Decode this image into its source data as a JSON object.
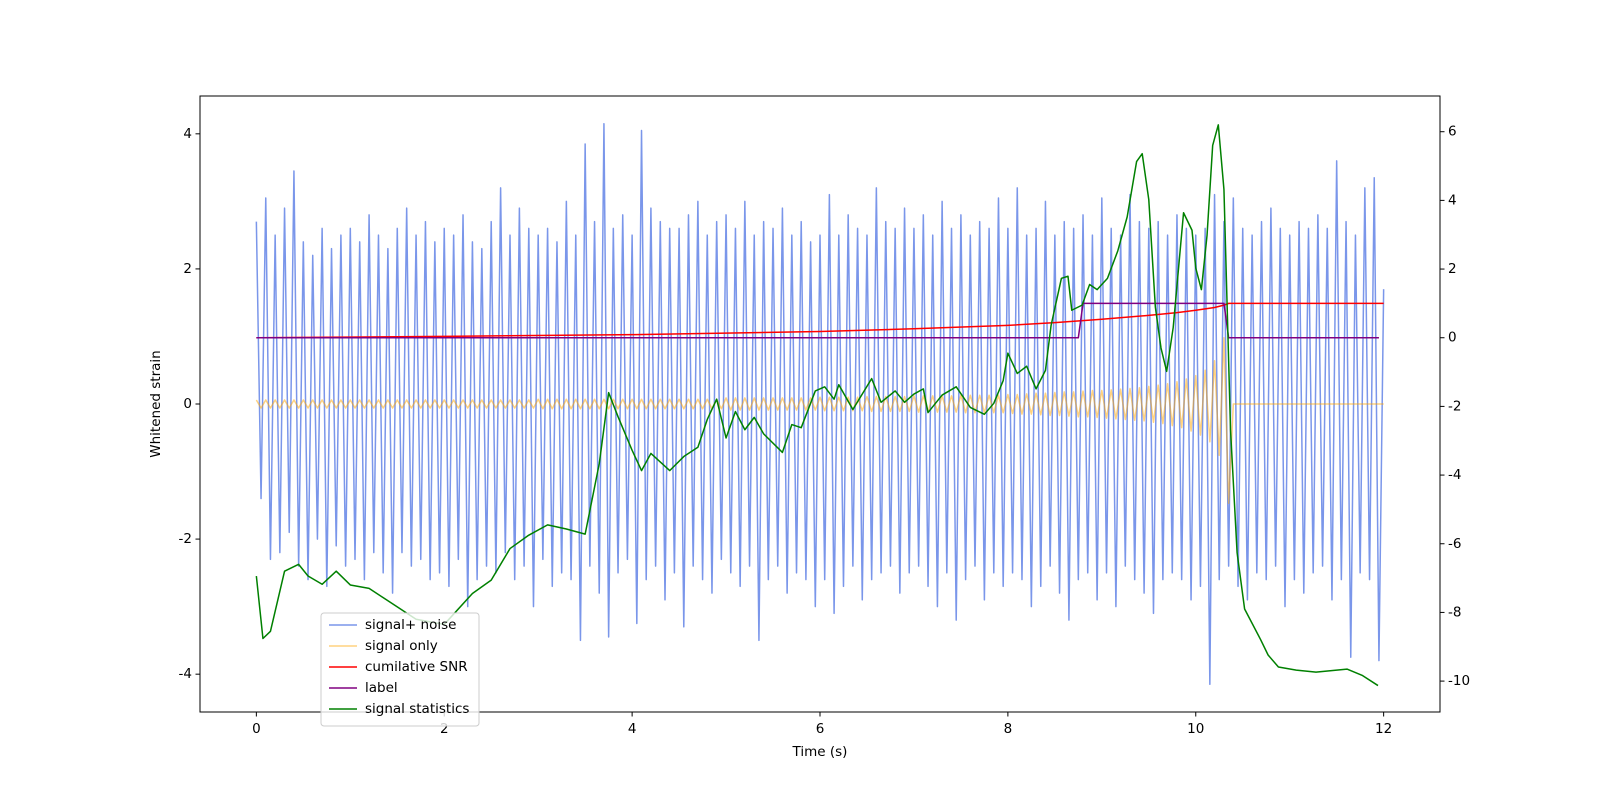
{
  "chart_data": {
    "type": "line",
    "xlabel": "Time (s)",
    "ylabel": "Whitened strain",
    "xlim": [
      -0.6,
      12.6
    ],
    "xticks": [
      0,
      2,
      4,
      6,
      8,
      10,
      12
    ],
    "ylim": [
      -4.56,
      4.56
    ],
    "yticks": [
      -4,
      -2,
      0,
      2,
      4
    ],
    "y2lim": [
      -10.9,
      7.04
    ],
    "y2ticks": [
      -10,
      -8,
      -6,
      -4,
      -2,
      0,
      2,
      4,
      6
    ],
    "legend": "lower left",
    "x": [
      0,
      0.05,
      0.1,
      0.15,
      0.2,
      0.25,
      0.3,
      0.35,
      0.4,
      0.45,
      0.5,
      0.55,
      0.6,
      0.65,
      0.7,
      0.75,
      0.8,
      0.85,
      0.9,
      0.95,
      1,
      1.05,
      1.1,
      1.15,
      1.2,
      1.25,
      1.3,
      1.35,
      1.4,
      1.45,
      1.5,
      1.55,
      1.6,
      1.65,
      1.7,
      1.75,
      1.8,
      1.85,
      1.9,
      1.95,
      2,
      2.05,
      2.1,
      2.15,
      2.2,
      2.25,
      2.3,
      2.35,
      2.4,
      2.45,
      2.5,
      2.55,
      2.6,
      2.65,
      2.7,
      2.75,
      2.8,
      2.85,
      2.9,
      2.95,
      3,
      3.05,
      3.1,
      3.15,
      3.2,
      3.25,
      3.3,
      3.35,
      3.4,
      3.45,
      3.5,
      3.55,
      3.6,
      3.65,
      3.7,
      3.75,
      3.8,
      3.85,
      3.9,
      3.95,
      4,
      4.05,
      4.1,
      4.15,
      4.2,
      4.25,
      4.3,
      4.35,
      4.4,
      4.45,
      4.5,
      4.55,
      4.6,
      4.65,
      4.7,
      4.75,
      4.8,
      4.85,
      4.9,
      4.95,
      5,
      5.05,
      5.1,
      5.15,
      5.2,
      5.25,
      5.3,
      5.35,
      5.4,
      5.45,
      5.5,
      5.55,
      5.6,
      5.65,
      5.7,
      5.75,
      5.8,
      5.85,
      5.9,
      5.95,
      6,
      6.05,
      6.1,
      6.15,
      6.2,
      6.25,
      6.3,
      6.35,
      6.4,
      6.45,
      6.5,
      6.55,
      6.6,
      6.65,
      6.7,
      6.75,
      6.8,
      6.85,
      6.9,
      6.95,
      7,
      7.05,
      7.1,
      7.15,
      7.2,
      7.25,
      7.3,
      7.35,
      7.4,
      7.45,
      7.5,
      7.55,
      7.6,
      7.65,
      7.7,
      7.75,
      7.8,
      7.85,
      7.9,
      7.95,
      8,
      8.05,
      8.1,
      8.15,
      8.2,
      8.25,
      8.3,
      8.35,
      8.4,
      8.45,
      8.5,
      8.55,
      8.6,
      8.65,
      8.7,
      8.75,
      8.8,
      8.85,
      8.9,
      8.95,
      9,
      9.05,
      9.1,
      9.15,
      9.2,
      9.25,
      9.3,
      9.35,
      9.4,
      9.45,
      9.5,
      9.55,
      9.6,
      9.65,
      9.7,
      9.75,
      9.8,
      9.85,
      9.9,
      9.95,
      10,
      10.05,
      10.1,
      10.15,
      10.2,
      10.25,
      10.3,
      10.35,
      10.4,
      10.45,
      10.5,
      10.55,
      10.6,
      10.65,
      10.7,
      10.75,
      10.8,
      10.85,
      10.9,
      10.95,
      11,
      11.05,
      11.1,
      11.15,
      11.2,
      11.25,
      11.3,
      11.35,
      11.4,
      11.45,
      11.5,
      11.55,
      11.6,
      11.65,
      11.7,
      11.75,
      11.8,
      11.85,
      11.9,
      11.95,
      12
    ],
    "series": [
      {
        "name": "signal+ noise",
        "color": "#4169e1",
        "alpha": 0.7,
        "values": [
          2.7,
          -1.4,
          3.05,
          -2.3,
          2.5,
          -2.2,
          2.9,
          -1.9,
          3.45,
          -2.4,
          2.4,
          -2.6,
          2.2,
          -2.0,
          2.6,
          -2.7,
          2.3,
          -2.1,
          2.5,
          -2.4,
          2.6,
          -2.3,
          2.4,
          -2.6,
          2.8,
          -2.2,
          2.5,
          -2.5,
          2.3,
          -2.8,
          2.6,
          -2.2,
          2.9,
          -2.4,
          2.5,
          -2.3,
          2.7,
          -2.6,
          2.4,
          -2.5,
          2.6,
          -2.7,
          2.5,
          -2.3,
          2.8,
          -3.0,
          2.4,
          -2.6,
          2.3,
          -2.4,
          2.7,
          -2.5,
          3.2,
          -2.2,
          2.5,
          -2.6,
          2.9,
          -2.4,
          2.6,
          -3.0,
          2.5,
          -2.3,
          2.6,
          -2.7,
          2.4,
          -2.5,
          3.0,
          -2.6,
          2.5,
          -3.5,
          3.85,
          -2.4,
          2.7,
          -2.8,
          4.15,
          -3.45,
          2.6,
          -2.5,
          2.8,
          -2.3,
          2.5,
          -3.25,
          4.05,
          -2.6,
          2.9,
          -2.4,
          2.7,
          -2.9,
          2.6,
          -2.5,
          2.6,
          -3.3,
          2.8,
          -2.4,
          3.0,
          -2.6,
          2.5,
          -2.8,
          2.7,
          -2.3,
          2.8,
          -2.5,
          2.6,
          -2.7,
          3.0,
          -2.4,
          2.5,
          -3.5,
          2.7,
          -2.6,
          2.6,
          -2.4,
          2.9,
          -2.8,
          2.5,
          -2.5,
          2.7,
          -2.6,
          2.4,
          -3.0,
          2.5,
          -2.6,
          3.1,
          -3.1,
          2.5,
          -2.7,
          2.8,
          -2.4,
          2.6,
          -2.9,
          2.5,
          -2.6,
          3.2,
          -2.5,
          2.7,
          -2.4,
          2.6,
          -2.8,
          2.9,
          -2.5,
          2.6,
          -2.4,
          2.8,
          -2.7,
          2.5,
          -3.0,
          3.0,
          -2.5,
          2.6,
          -3.2,
          2.8,
          -2.6,
          2.5,
          -2.4,
          2.7,
          -2.9,
          2.6,
          -2.5,
          3.05,
          -2.7,
          2.6,
          -2.5,
          3.2,
          -2.6,
          2.5,
          -3.0,
          2.6,
          -2.7,
          3.0,
          -2.4,
          2.5,
          -2.8,
          2.7,
          -3.2,
          2.6,
          -2.6,
          2.8,
          -2.5,
          2.5,
          -2.9,
          3.05,
          -2.5,
          2.6,
          -3.0,
          2.5,
          -2.4,
          3.1,
          -2.6,
          2.7,
          -2.8,
          2.6,
          -3.1,
          2.7,
          -2.6,
          2.5,
          -2.5,
          2.8,
          -2.6,
          2.6,
          -2.9,
          2.5,
          -2.7,
          2.6,
          -4.15,
          3.1,
          -2.6,
          2.7,
          -2.4,
          3.05,
          -2.7,
          2.6,
          -2.9,
          2.5,
          -2.5,
          2.7,
          -2.6,
          2.9,
          -2.4,
          2.6,
          -3.0,
          2.5,
          -2.6,
          2.7,
          -2.8,
          2.6,
          -2.5,
          2.8,
          -2.4,
          2.6,
          -2.9,
          3.6,
          -2.6,
          2.7,
          -3.75,
          2.5,
          -2.5,
          3.2,
          -2.6,
          3.35,
          -3.8,
          1.7
        ]
      },
      {
        "name": "signal only",
        "color": "#ffa500",
        "alpha": 0.5,
        "values": [
          0.06,
          -0.06,
          0.06,
          -0.06,
          0.06,
          -0.06,
          0.06,
          -0.06,
          0.06,
          -0.06,
          0.06,
          -0.06,
          0.06,
          -0.06,
          0.06,
          -0.06,
          0.06,
          -0.06,
          0.06,
          -0.06,
          0.06,
          -0.06,
          0.06,
          -0.06,
          0.06,
          -0.06,
          0.06,
          -0.06,
          0.06,
          -0.06,
          0.06,
          -0.06,
          0.06,
          -0.06,
          0.06,
          -0.06,
          0.06,
          -0.06,
          0.06,
          -0.06,
          0.06,
          -0.06,
          0.06,
          -0.06,
          0.06,
          -0.06,
          0.06,
          -0.06,
          0.06,
          -0.06,
          0.06,
          -0.06,
          0.06,
          -0.06,
          0.06,
          -0.06,
          0.06,
          -0.06,
          0.06,
          -0.06,
          0.07,
          -0.07,
          0.07,
          -0.07,
          0.07,
          -0.07,
          0.07,
          -0.07,
          0.07,
          -0.07,
          0.07,
          -0.07,
          0.07,
          -0.07,
          0.07,
          -0.07,
          0.07,
          -0.07,
          0.07,
          -0.07,
          0.07,
          -0.07,
          0.07,
          -0.07,
          0.07,
          -0.07,
          0.07,
          -0.07,
          0.07,
          -0.07,
          0.07,
          -0.07,
          0.07,
          -0.07,
          0.07,
          -0.07,
          0.07,
          -0.07,
          0.07,
          -0.07,
          0.09,
          -0.09,
          0.09,
          -0.09,
          0.09,
          -0.09,
          0.09,
          -0.09,
          0.09,
          -0.09,
          0.09,
          -0.09,
          0.09,
          -0.09,
          0.09,
          -0.09,
          0.09,
          -0.09,
          0.09,
          -0.09,
          0.1,
          -0.1,
          0.1,
          -0.1,
          0.1,
          -0.1,
          0.1,
          -0.1,
          0.1,
          -0.1,
          0.11,
          -0.11,
          0.11,
          -0.11,
          0.11,
          -0.11,
          0.11,
          -0.11,
          0.11,
          -0.11,
          0.12,
          -0.12,
          0.12,
          -0.12,
          0.12,
          -0.12,
          0.12,
          -0.12,
          0.12,
          -0.12,
          0.13,
          -0.13,
          0.13,
          -0.13,
          0.13,
          -0.13,
          0.13,
          -0.13,
          0.13,
          -0.13,
          0.14,
          -0.14,
          0.14,
          -0.15,
          0.15,
          -0.15,
          0.16,
          -0.16,
          0.16,
          -0.17,
          0.17,
          -0.17,
          0.18,
          -0.18,
          0.18,
          -0.19,
          0.19,
          -0.19,
          0.2,
          -0.2,
          0.2,
          -0.21,
          0.21,
          -0.22,
          0.22,
          -0.23,
          0.23,
          -0.24,
          0.24,
          -0.25,
          0.26,
          -0.27,
          0.28,
          -0.29,
          0.3,
          -0.32,
          0.33,
          -0.35,
          0.37,
          -0.4,
          0.42,
          -0.46,
          0.5,
          -0.56,
          0.64,
          -0.76,
          0.98,
          -1.47,
          0,
          0,
          0,
          0,
          0,
          0,
          0,
          0,
          0,
          0,
          0,
          0,
          0,
          0,
          0,
          0,
          0,
          0,
          0,
          0,
          0,
          0,
          0,
          0,
          0,
          0,
          0,
          0,
          0,
          0,
          0,
          0,
          0
        ]
      },
      {
        "name": "cumilative SNR",
        "color": "#ff0000",
        "axis": "y2",
        "x": [
          0,
          2,
          4,
          6,
          7,
          8,
          8.5,
          9,
          9.5,
          9.8,
          10,
          10.2,
          10.3,
          10.35,
          11,
          12
        ],
        "values": [
          0,
          0.04,
          0.09,
          0.18,
          0.26,
          0.36,
          0.44,
          0.54,
          0.65,
          0.73,
          0.8,
          0.88,
          0.95,
          1,
          1,
          1
        ]
      },
      {
        "name": "label",
        "color": "#800080",
        "axis": "y2",
        "x": [
          0,
          8.75,
          8.8,
          10.3,
          10.35,
          11.95
        ],
        "values": [
          0,
          0,
          1,
          1,
          0,
          0
        ]
      },
      {
        "name": "signal statistics",
        "color": "#008000",
        "axis": "y2",
        "x": [
          0,
          0.07,
          0.15,
          0.3,
          0.45,
          0.55,
          0.7,
          0.85,
          1,
          1.2,
          1.35,
          1.5,
          1.7,
          2,
          2.3,
          2.5,
          2.7,
          2.9,
          3.1,
          3.3,
          3.5,
          3.65,
          3.75,
          3.85,
          4,
          4.1,
          4.2,
          4.4,
          4.55,
          4.7,
          4.8,
          4.9,
          5,
          5.1,
          5.2,
          5.3,
          5.4,
          5.6,
          5.7,
          5.8,
          5.95,
          6.05,
          6.15,
          6.2,
          6.35,
          6.55,
          6.65,
          6.8,
          6.9,
          7,
          7.1,
          7.15,
          7.3,
          7.45,
          7.6,
          7.75,
          7.85,
          7.95,
          8,
          8.1,
          8.2,
          8.3,
          8.4,
          8.46,
          8.57,
          8.64,
          8.68,
          8.79,
          8.87,
          8.95,
          9.06,
          9.17,
          9.27,
          9.37,
          9.43,
          9.5,
          9.57,
          9.63,
          9.69,
          9.76,
          9.87,
          9.96,
          10,
          10.06,
          10.12,
          10.18,
          10.24,
          10.3,
          10.37,
          10.44,
          10.52,
          10.69,
          10.77,
          10.88,
          11.07,
          11.28,
          11.5,
          11.61,
          11.77,
          11.94
        ],
        "values": [
          -6.94,
          -8.76,
          -8.55,
          -6.8,
          -6.6,
          -6.94,
          -7.18,
          -6.8,
          -7.2,
          -7.3,
          -7.57,
          -7.84,
          -8.2,
          -8.35,
          -7.45,
          -7.06,
          -6.14,
          -5.75,
          -5.45,
          -5.57,
          -5.72,
          -3.67,
          -1.6,
          -2.3,
          -3.28,
          -3.87,
          -3.37,
          -3.87,
          -3.46,
          -3.19,
          -2.38,
          -1.79,
          -2.92,
          -2.15,
          -2.68,
          -2.32,
          -2.8,
          -3.34,
          -2.53,
          -2.62,
          -1.55,
          -1.43,
          -1.79,
          -1.37,
          -2.09,
          -1.19,
          -1.88,
          -1.55,
          -1.88,
          -1.64,
          -1.49,
          -2.18,
          -1.67,
          -1.43,
          -2.03,
          -2.23,
          -1.91,
          -1.25,
          -0.45,
          -1.04,
          -0.83,
          -1.49,
          -0.95,
          0.36,
          1.73,
          1.79,
          0.8,
          0.95,
          1.55,
          1.4,
          1.73,
          2.53,
          3.52,
          5.13,
          5.36,
          4.02,
          0.89,
          -0.3,
          -0.98,
          0.3,
          3.64,
          3.13,
          2.03,
          1.4,
          2.98,
          5.6,
          6.2,
          4.32,
          -2.68,
          -6.26,
          -7.9,
          -8.79,
          -9.24,
          -9.59,
          -9.68,
          -9.74,
          -9.68,
          -9.65,
          -9.83,
          -10.13
        ]
      }
    ]
  }
}
